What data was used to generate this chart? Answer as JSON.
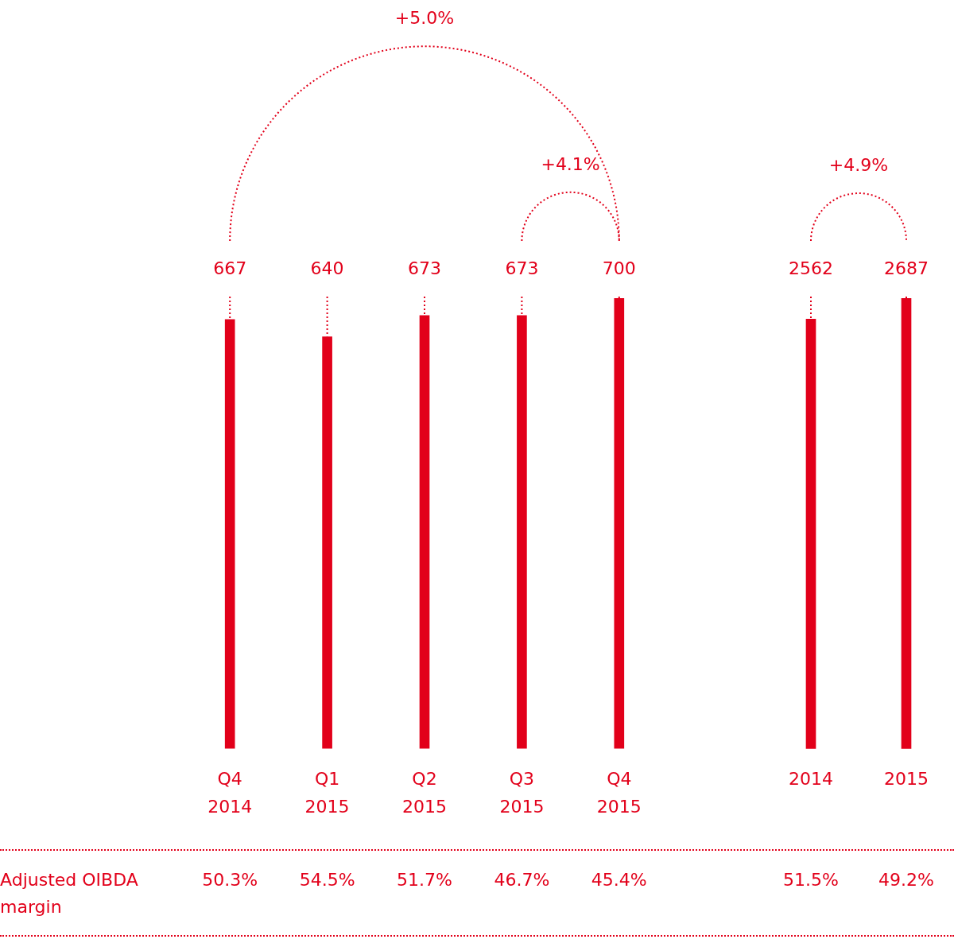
{
  "chart_data": [
    {
      "type": "bar",
      "categories": [
        "Q4 2014",
        "Q1 2015",
        "Q2 2015",
        "Q3 2015",
        "Q4 2015"
      ],
      "values": [
        667,
        640,
        673,
        673,
        700
      ],
      "color": "#e2001a",
      "data_labels": true,
      "grid": false,
      "legend": false,
      "annotations": [
        "+5.0%",
        "+4.1%",
        "Adjusted OIBDA margin",
        "50.3%",
        "54.5%",
        "51.7%",
        "46.7%",
        "45.4%"
      ]
    },
    {
      "type": "bar",
      "categories": [
        "2014",
        "2015"
      ],
      "values": [
        2562,
        2687
      ],
      "color": "#e2001a",
      "data_labels": true,
      "grid": false,
      "legend": false,
      "annotations": [
        "+4.9%",
        "51.5%",
        "49.2%"
      ]
    }
  ]
}
